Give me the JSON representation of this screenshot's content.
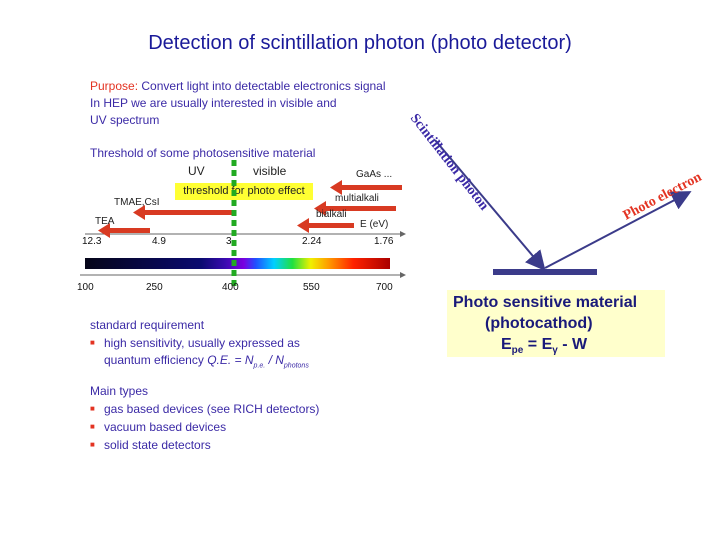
{
  "title": "Detection of scintillation photon  (photo detector)",
  "purpose": {
    "label": "Purpose:",
    "line1": "Convert light into detectable electronics signal",
    "line2": "In HEP we are usually interested in visible and",
    "line3": "UV spectrum"
  },
  "threshold": {
    "heading": "Threshold of some photosensitive material",
    "uv_label": "UV",
    "visible_label": "visible",
    "yellow_label": "threshold for photo effect",
    "materials": [
      {
        "name": "GaAs ..."
      },
      {
        "name": "multialkali"
      },
      {
        "name": "bialkali"
      },
      {
        "name": "TMAE,CsI"
      },
      {
        "name": "TEA"
      }
    ],
    "energy_axis_label": "E (eV)",
    "energy_ticks": [
      "12.3",
      "4.9",
      "3",
      "2.24",
      "1.76"
    ],
    "wavelength_ticks": [
      "100",
      "250",
      "400",
      "550",
      "700"
    ],
    "accent_color": "#e33322",
    "marker_color": "#22aa22"
  },
  "requirements": {
    "heading": "standard requirement",
    "bullet1": "high sensitivity, usually expressed as",
    "qe_prefix": "quantum efficiency",
    "qe_formula": "Q.E. = N",
    "qe_sub1": "p.e.",
    "qe_div": " / N",
    "qe_sub2": "photons"
  },
  "main_types": {
    "heading": "Main types",
    "items": [
      "gas based devices (see RICH detectors)",
      "vacuum based devices",
      "solid state detectors"
    ]
  },
  "diagram": {
    "incoming_label": "Scintillation photon",
    "outgoing_label": "Photo electron",
    "box_line1": "Photo sensitive material",
    "box_line2": "(photocathod)",
    "box_eq_prefix": "E",
    "box_eq_sub": "pe",
    "box_eq_mid": " = E",
    "box_eq_sub2": "γ",
    "box_eq_suffix": " - W"
  }
}
